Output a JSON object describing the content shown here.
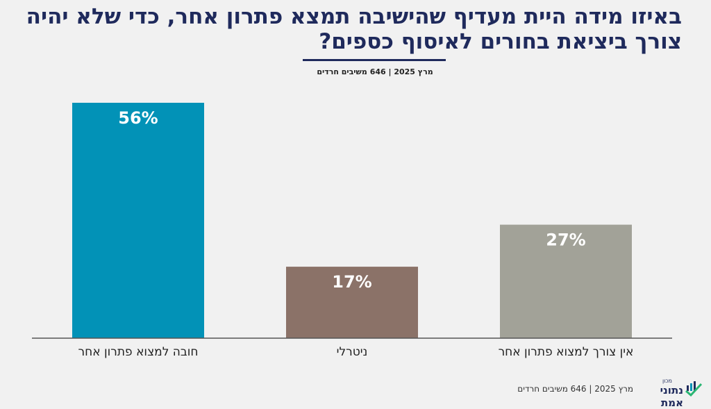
{
  "chart_data": {
    "type": "bar",
    "title": "באיזו מידה היית מעדיף שהישיבה תמצא פתרון אחר, כדי שלא יהיה צורך ביציאת בחורים לאיסוף כספים?",
    "subtitle": "מרץ 2025 | 646 משיבים חרדים",
    "categories": [
      "חובה למצוא פתרון אחר",
      "ניטרלי",
      "אין צורך למצוא פתרון אחר"
    ],
    "values": [
      56,
      17,
      27
    ],
    "value_labels": [
      "56%",
      "17%",
      "27%"
    ],
    "colors": [
      "#0292b7",
      "#8b7268",
      "#a2a298"
    ],
    "ylim": [
      0,
      56
    ]
  },
  "footer": {
    "source": "מרץ 2025 | 646 משיבים חרדים",
    "logo_small": "מכון",
    "logo_main": "נתוני אמת"
  }
}
